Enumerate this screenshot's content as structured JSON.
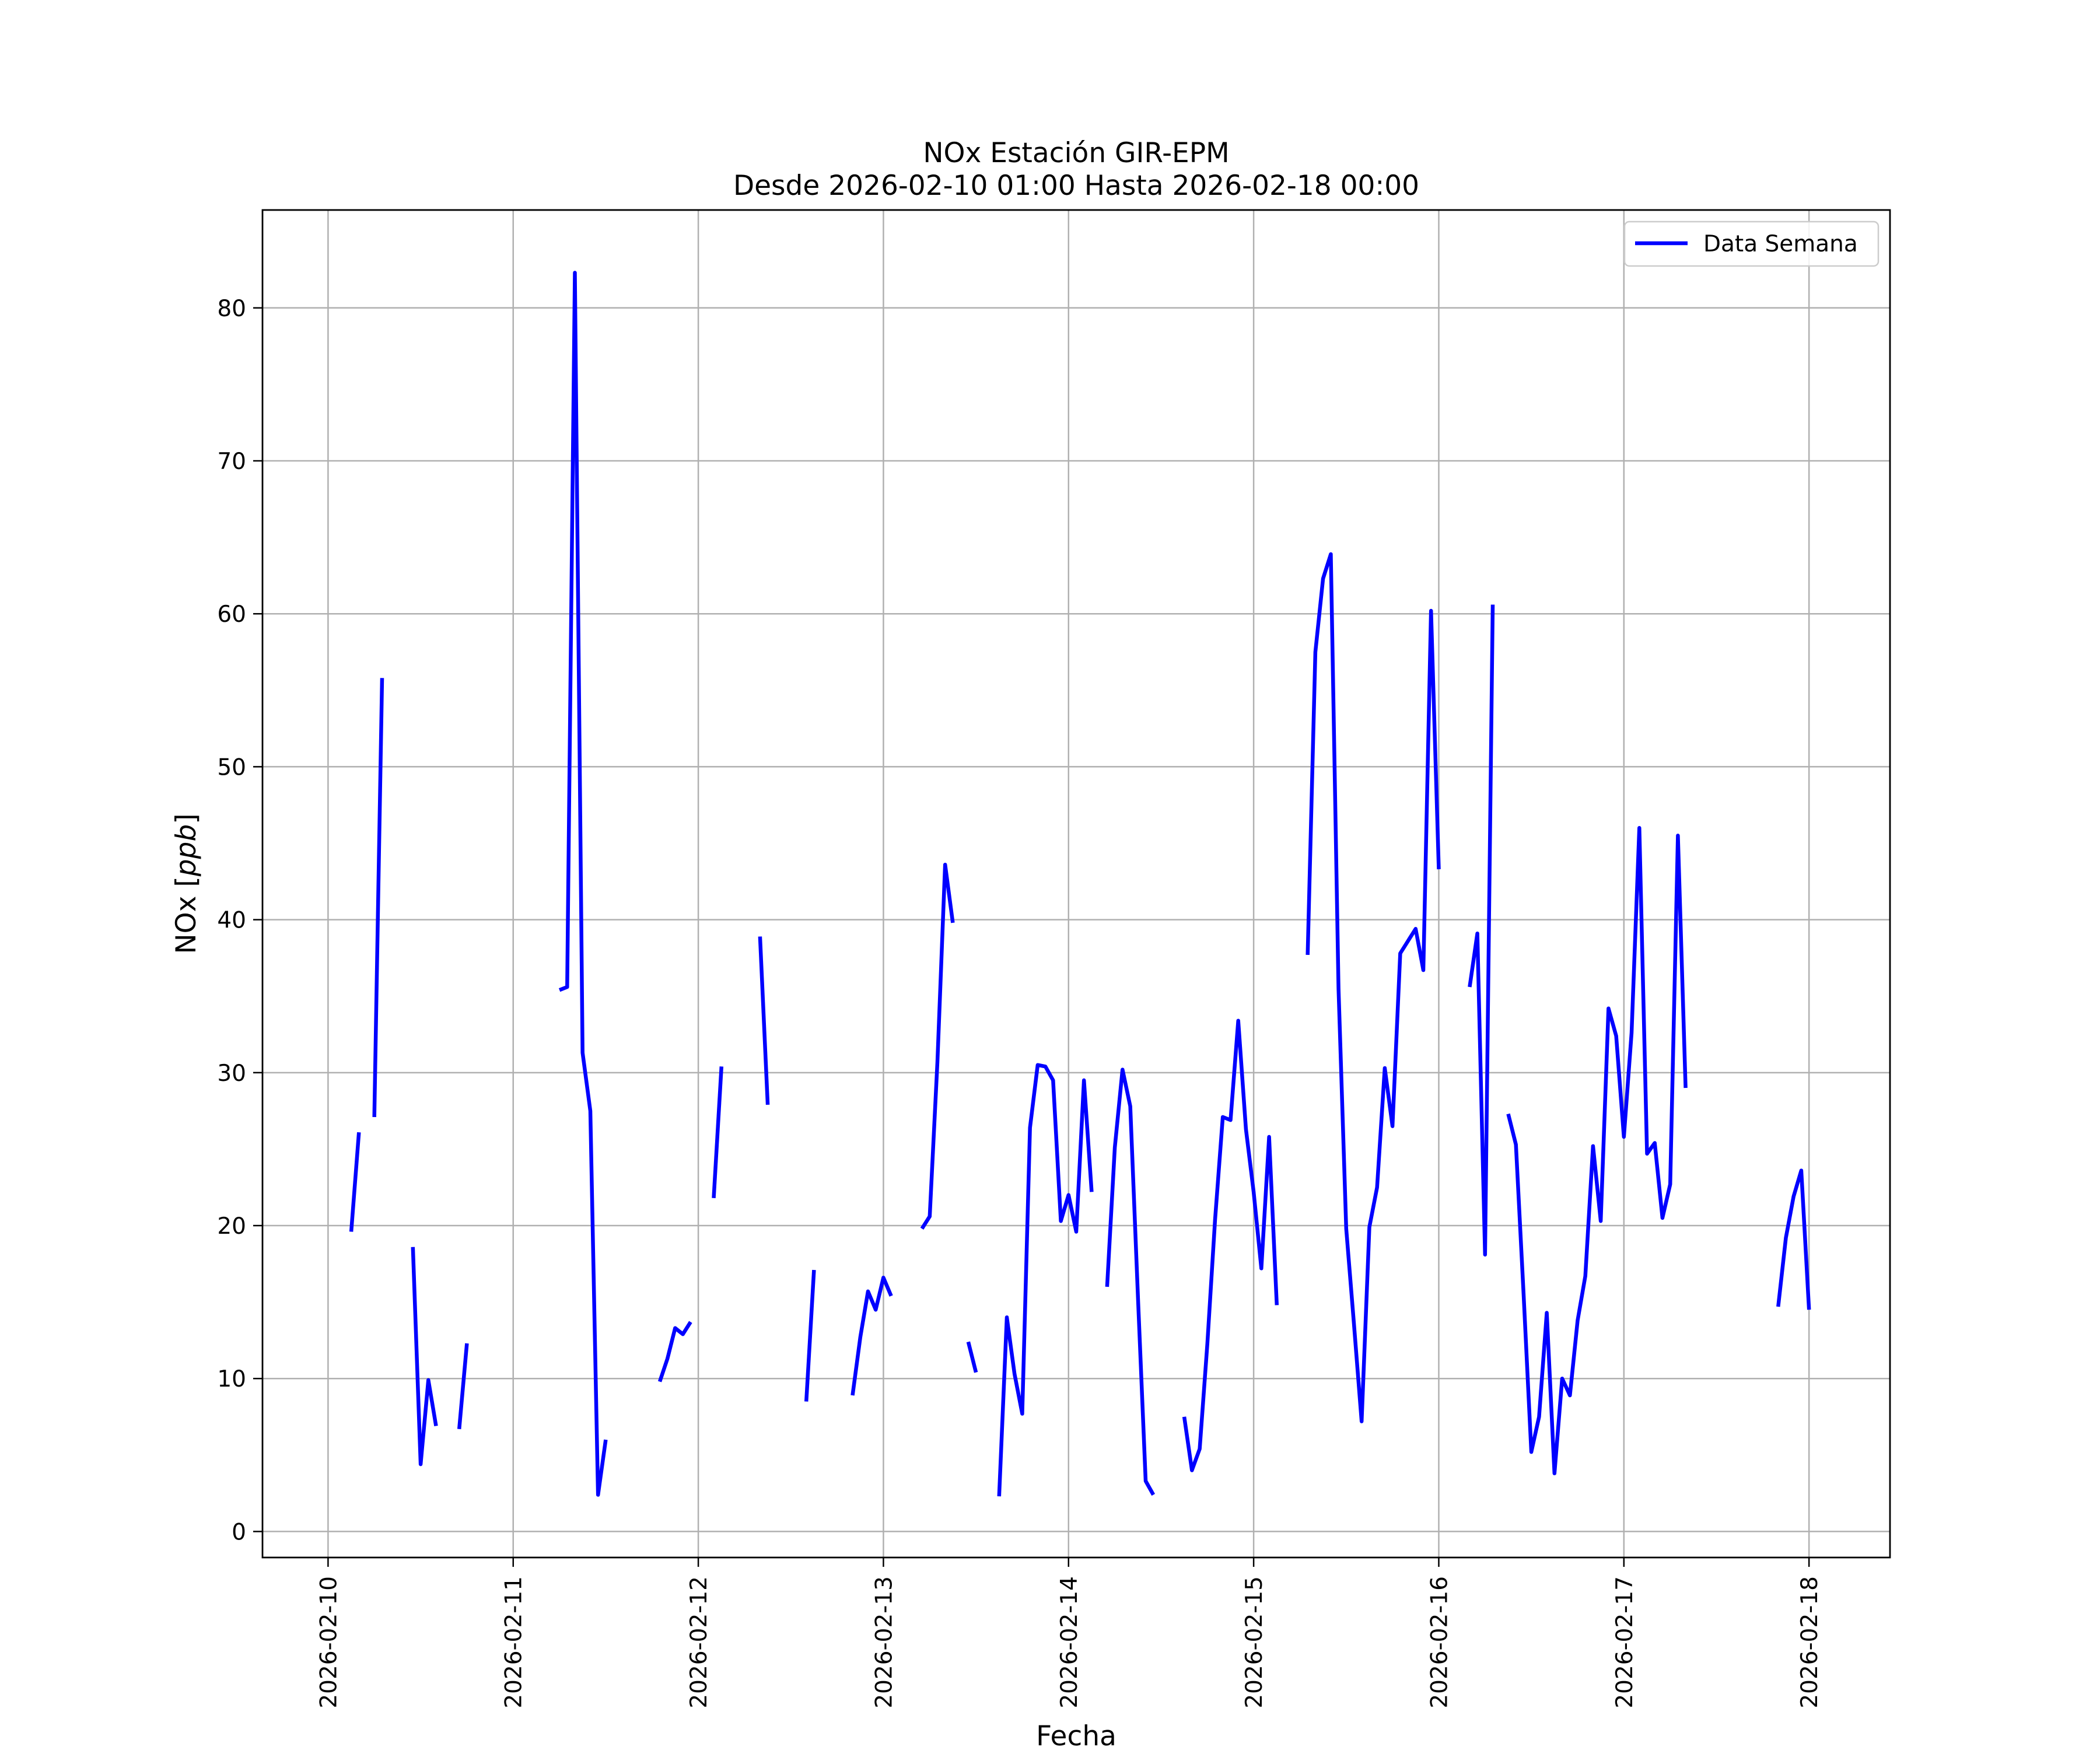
{
  "chart_data": {
    "type": "line",
    "title_line1": "NOx Estación GIR-EPM",
    "title_line2": "Desde 2026-02-10 01:00 Hasta 2026-02-18 00:00",
    "xlabel": "Fecha",
    "ylabel_text": "NOx [",
    "ylabel_unit": "ppb",
    "ylabel_close": "]",
    "xlim": [
      "2026-02-09 15:30",
      "2026-02-18 10:30"
    ],
    "ylim": [
      -1.7,
      86.4
    ],
    "x_ticks": [
      "2026-02-10",
      "2026-02-11",
      "2026-02-12",
      "2026-02-13",
      "2026-02-14",
      "2026-02-15",
      "2026-02-16",
      "2026-02-17",
      "2026-02-18"
    ],
    "y_ticks": [
      0,
      10,
      20,
      30,
      40,
      50,
      60,
      70,
      80
    ],
    "grid": true,
    "legend_position": "top-right",
    "series": [
      {
        "name": "Data Semana",
        "color": "#0000ff",
        "segments": [
          [
            [
              "2026-02-10 03:00",
              19.6
            ],
            [
              "2026-02-10 04:00",
              26.1
            ]
          ],
          [
            [
              "2026-02-10 06:00",
              27.1
            ],
            [
              "2026-02-10 07:00",
              55.8
            ]
          ],
          [
            [
              "2026-02-10 11:00",
              18.6
            ],
            [
              "2026-02-10 12:00",
              4.4
            ],
            [
              "2026-02-10 13:00",
              9.9
            ],
            [
              "2026-02-10 14:00",
              6.9
            ]
          ],
          [
            [
              "2026-02-10 17:00",
              6.7
            ],
            [
              "2026-02-10 18:00",
              12.3
            ]
          ],
          [
            [
              "2026-02-11 06:00",
              35.4
            ],
            [
              "2026-02-11 07:00",
              35.6
            ],
            [
              "2026-02-11 08:00",
              82.3
            ],
            [
              "2026-02-11 09:00",
              31.3
            ],
            [
              "2026-02-11 10:00",
              27.5
            ],
            [
              "2026-02-11 11:00",
              2.4
            ],
            [
              "2026-02-11 12:00",
              6.0
            ]
          ],
          [
            [
              "2026-02-11 19:00",
              9.8
            ],
            [
              "2026-02-11 20:00",
              11.3
            ],
            [
              "2026-02-11 21:00",
              13.3
            ],
            [
              "2026-02-11 22:00",
              12.9
            ],
            [
              "2026-02-11 23:00",
              13.7
            ]
          ],
          [
            [
              "2026-02-12 02:00",
              21.8
            ],
            [
              "2026-02-12 03:00",
              30.4
            ]
          ],
          [
            [
              "2026-02-12 08:00",
              38.9
            ],
            [
              "2026-02-12 09:00",
              27.9
            ]
          ],
          [
            [
              "2026-02-12 14:00",
              8.5
            ],
            [
              "2026-02-12 15:00",
              17.1
            ]
          ],
          [
            [
              "2026-02-12 20:00",
              8.9
            ],
            [
              "2026-02-12 21:00",
              12.7
            ],
            [
              "2026-02-12 22:00",
              15.7
            ],
            [
              "2026-02-12 23:00",
              14.5
            ],
            [
              "2026-02-13 00:00",
              16.6
            ],
            [
              "2026-02-13 01:00",
              15.4
            ]
          ],
          [
            [
              "2026-02-13 05:00",
              19.8
            ],
            [
              "2026-02-13 06:00",
              20.6
            ],
            [
              "2026-02-13 07:00",
              30.7
            ],
            [
              "2026-02-13 08:00",
              43.6
            ],
            [
              "2026-02-13 09:00",
              39.8
            ]
          ],
          [
            [
              "2026-02-13 11:00",
              12.4
            ],
            [
              "2026-02-13 12:00",
              10.4
            ]
          ],
          [
            [
              "2026-02-13 15:00",
              2.3
            ],
            [
              "2026-02-13 16:00",
              14.0
            ],
            [
              "2026-02-13 17:00",
              10.3
            ],
            [
              "2026-02-13 18:00",
              7.7
            ],
            [
              "2026-02-13 19:00",
              26.4
            ],
            [
              "2026-02-13 20:00",
              30.5
            ],
            [
              "2026-02-13 21:00",
              30.4
            ],
            [
              "2026-02-13 22:00",
              29.5
            ],
            [
              "2026-02-13 23:00",
              20.3
            ],
            [
              "2026-02-14 00:00",
              22.0
            ],
            [
              "2026-02-14 01:00",
              19.6
            ],
            [
              "2026-02-14 02:00",
              29.5
            ],
            [
              "2026-02-14 03:00",
              22.2
            ]
          ],
          [
            [
              "2026-02-14 05:00",
              16.0
            ],
            [
              "2026-02-14 06:00",
              25.1
            ],
            [
              "2026-02-14 07:00",
              30.2
            ],
            [
              "2026-02-14 08:00",
              27.8
            ],
            [
              "2026-02-14 09:00",
              15.3
            ],
            [
              "2026-02-14 10:00",
              3.3
            ],
            [
              "2026-02-14 11:00",
              2.4
            ]
          ],
          [
            [
              "2026-02-14 15:00",
              7.5
            ],
            [
              "2026-02-14 16:00",
              4.0
            ],
            [
              "2026-02-14 17:00",
              5.4
            ],
            [
              "2026-02-14 18:00",
              12.3
            ],
            [
              "2026-02-14 19:00",
              20.4
            ],
            [
              "2026-02-14 20:00",
              27.1
            ],
            [
              "2026-02-14 21:00",
              26.9
            ],
            [
              "2026-02-14 22:00",
              33.4
            ],
            [
              "2026-02-14 23:00",
              26.3
            ],
            [
              "2026-02-15 00:00",
              22.2
            ],
            [
              "2026-02-15 01:00",
              17.2
            ],
            [
              "2026-02-15 02:00",
              25.8
            ],
            [
              "2026-02-15 03:00",
              14.8
            ]
          ],
          [
            [
              "2026-02-15 07:00",
              37.7
            ],
            [
              "2026-02-15 08:00",
              57.5
            ],
            [
              "2026-02-15 09:00",
              62.3
            ],
            [
              "2026-02-15 10:00",
              63.9
            ],
            [
              "2026-02-15 11:00",
              35.5
            ],
            [
              "2026-02-15 12:00",
              19.8
            ],
            [
              "2026-02-15 13:00",
              13.6
            ],
            [
              "2026-02-15 14:00",
              7.2
            ],
            [
              "2026-02-15 15:00",
              19.9
            ],
            [
              "2026-02-15 16:00",
              22.5
            ],
            [
              "2026-02-15 17:00",
              30.3
            ],
            [
              "2026-02-15 18:00",
              26.5
            ],
            [
              "2026-02-15 19:00",
              37.8
            ],
            [
              "2026-02-15 20:00",
              38.6
            ],
            [
              "2026-02-15 21:00",
              39.4
            ],
            [
              "2026-02-15 22:00",
              36.7
            ],
            [
              "2026-02-15 23:00",
              60.2
            ],
            [
              "2026-02-16 00:00",
              43.3
            ]
          ],
          [
            [
              "2026-02-16 04:00",
              35.6
            ],
            [
              "2026-02-16 05:00",
              39.1
            ],
            [
              "2026-02-16 06:00",
              18.1
            ],
            [
              "2026-02-16 07:00",
              60.6
            ]
          ],
          [
            [
              "2026-02-16 09:00",
              27.3
            ],
            [
              "2026-02-16 10:00",
              25.3
            ],
            [
              "2026-02-16 11:00",
              15.5
            ],
            [
              "2026-02-16 12:00",
              5.2
            ],
            [
              "2026-02-16 13:00",
              7.5
            ],
            [
              "2026-02-16 14:00",
              14.3
            ],
            [
              "2026-02-16 15:00",
              3.8
            ],
            [
              "2026-02-16 16:00",
              10.0
            ],
            [
              "2026-02-16 17:00",
              8.9
            ],
            [
              "2026-02-16 18:00",
              13.8
            ],
            [
              "2026-02-16 19:00",
              16.7
            ],
            [
              "2026-02-16 20:00",
              25.2
            ],
            [
              "2026-02-16 21:00",
              20.3
            ],
            [
              "2026-02-16 22:00",
              34.2
            ],
            [
              "2026-02-16 23:00",
              32.4
            ],
            [
              "2026-02-17 00:00",
              25.8
            ],
            [
              "2026-02-17 01:00",
              32.6
            ],
            [
              "2026-02-17 02:00",
              46.0
            ],
            [
              "2026-02-17 03:00",
              24.7
            ],
            [
              "2026-02-17 04:00",
              25.4
            ],
            [
              "2026-02-17 05:00",
              20.5
            ],
            [
              "2026-02-17 06:00",
              22.7
            ],
            [
              "2026-02-17 07:00",
              45.5
            ],
            [
              "2026-02-17 08:00",
              29.0
            ]
          ],
          [
            [
              "2026-02-17 20:00",
              14.7
            ],
            [
              "2026-02-17 21:00",
              19.2
            ],
            [
              "2026-02-17 22:00",
              21.9
            ],
            [
              "2026-02-17 23:00",
              23.6
            ],
            [
              "2026-02-18 00:00",
              14.5
            ]
          ]
        ]
      }
    ]
  }
}
